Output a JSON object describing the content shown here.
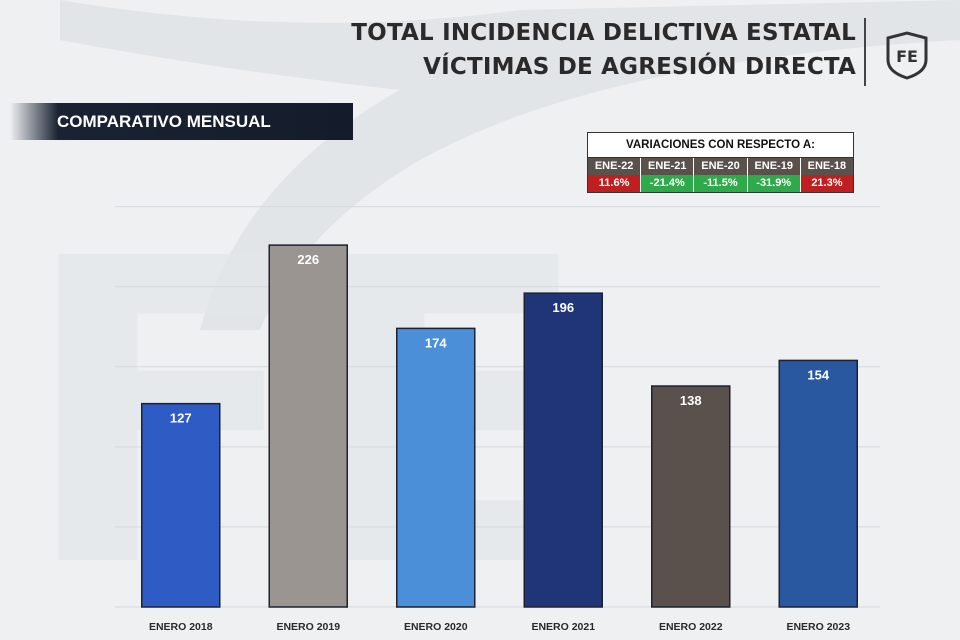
{
  "header": {
    "title_line1": "TOTAL INCIDENCIA DELICTIVA ESTATAL",
    "title_line2": "VÍCTIMAS DE AGRESIÓN DIRECTA",
    "logo_text": "FE"
  },
  "section": {
    "label": "COMPARATIVO MENSUAL"
  },
  "variations": {
    "header": "VARIACIONES CON RESPECTO A:",
    "columns": [
      {
        "label": "ENE-22",
        "value": "11.6%",
        "status": "up"
      },
      {
        "label": "ENE-21",
        "value": "-21.4%",
        "status": "down"
      },
      {
        "label": "ENE-20",
        "value": "-11.5%",
        "status": "down"
      },
      {
        "label": "ENE-19",
        "value": "-31.9%",
        "status": "down"
      },
      {
        "label": "ENE-18",
        "value": "21.3%",
        "status": "up"
      }
    ]
  },
  "colors": {
    "up": "#c01f1f",
    "down": "#2faa4a",
    "bars": [
      "#2f5bc4",
      "#9a9590",
      "#4a8fd8",
      "#1f3577",
      "#5a514d",
      "#2a58a0"
    ]
  },
  "chart_data": {
    "type": "bar",
    "title": "COMPARATIVO MENSUAL",
    "categories": [
      "ENERO 2018",
      "ENERO 2019",
      "ENERO 2020",
      "ENERO 2021",
      "ENERO 2022",
      "ENERO 2023"
    ],
    "values": [
      127,
      226,
      174,
      196,
      138,
      154
    ],
    "ylim": [
      0,
      250
    ],
    "xlabel": "",
    "ylabel": "",
    "grid": true,
    "data_labels": true
  }
}
